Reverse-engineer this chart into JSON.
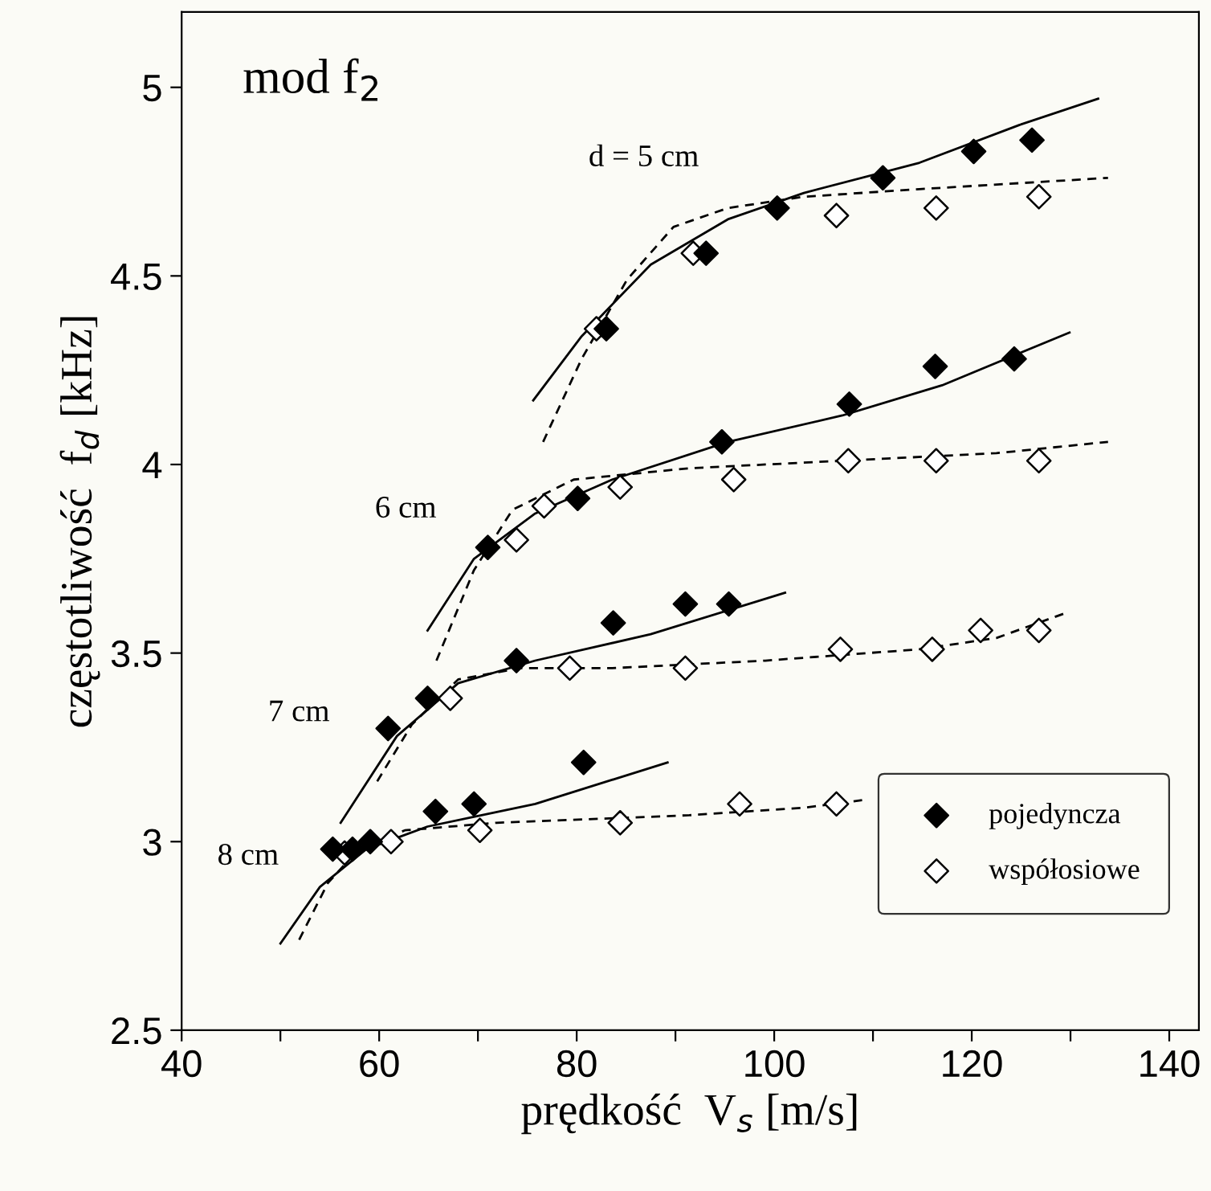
{
  "chart_data": {
    "type": "scatter",
    "xlabel": "prędkość  V$_{s}$ [m/s]",
    "ylabel": "częstotliwość  f$_{d}$ [kHz]",
    "xlim": [
      40,
      143
    ],
    "ylim": [
      2.5,
      5.2
    ],
    "xticks": [
      40,
      {
        "value": 50,
        "label": null
      },
      60,
      {
        "value": 70,
        "label": null
      },
      80,
      {
        "value": 90,
        "label": null
      },
      100,
      {
        "value": 110,
        "label": null
      },
      120,
      {
        "value": 130,
        "label": null
      },
      140
    ],
    "yticks": [
      2.5,
      3,
      3.5,
      4,
      4.5,
      5
    ],
    "grid": false,
    "legend": "bottom right",
    "annotations": [
      "mod f$_{2}$",
      "d = 5 cm",
      "6 cm",
      "7 cm",
      "8 cm"
    ],
    "series": [
      {
        "name": "pojedyncza",
        "marker": "diamond",
        "color": "#000000",
        "x": [
          83.0,
          93.1,
          100.3,
          111.0,
          120.2,
          126.1,
          71.0,
          80.1,
          94.7,
          107.6,
          116.3,
          124.3,
          60.9,
          64.9,
          73.9,
          83.7,
          91.0,
          95.4,
          55.3,
          57.3,
          59.1,
          65.7,
          69.6,
          80.7
        ],
        "values": [
          4.36,
          4.56,
          4.68,
          4.76,
          4.83,
          4.86,
          3.78,
          3.91,
          4.06,
          4.16,
          4.26,
          4.28,
          3.3,
          3.38,
          3.48,
          3.58,
          3.63,
          3.63,
          2.98,
          2.98,
          3.0,
          3.08,
          3.1,
          3.21
        ]
      },
      {
        "name": "współosiowe",
        "marker": "diamond",
        "color": "#ffffff",
        "x": [
          82.0,
          91.8,
          106.3,
          116.4,
          126.8,
          73.9,
          76.7,
          84.4,
          95.9,
          107.5,
          116.4,
          126.8,
          67.2,
          79.3,
          91.0,
          106.7,
          116.0,
          120.9,
          126.8,
          56.5,
          61.2,
          70.2,
          84.4,
          96.5,
          106.3
        ],
        "values": [
          4.36,
          4.56,
          4.66,
          4.68,
          4.71,
          3.8,
          3.89,
          3.94,
          3.96,
          4.01,
          4.01,
          4.01,
          3.38,
          3.46,
          3.46,
          3.51,
          3.51,
          3.56,
          3.56,
          2.97,
          3.0,
          3.03,
          3.05,
          3.1,
          3.1
        ]
      },
      {
        "type": "line",
        "line_style": "solid",
        "color": "#000000",
        "x": [
          75.6,
          80.5,
          87.5,
          95.3,
          103.0,
          114.7,
          124.8,
          132.8
        ],
        "values": [
          4.17,
          4.34,
          4.53,
          4.65,
          4.72,
          4.8,
          4.9,
          4.97
        ]
      },
      {
        "type": "line",
        "line_style": "dashed",
        "color": "#000000",
        "x": [
          76.6,
          80.5,
          85.1,
          89.8,
          95.3,
          103.0,
          114.7,
          133.8
        ],
        "values": [
          4.06,
          4.28,
          4.49,
          4.63,
          4.68,
          4.71,
          4.73,
          4.76
        ]
      },
      {
        "type": "line",
        "line_style": "solid",
        "color": "#000000",
        "x": [
          64.9,
          69.6,
          75.8,
          83.6,
          95.3,
          106.9,
          117.0,
          129.9
        ],
        "values": [
          3.56,
          3.75,
          3.87,
          3.96,
          4.06,
          4.13,
          4.21,
          4.35
        ]
      },
      {
        "type": "line",
        "line_style": "dashed",
        "color": "#000000",
        "x": [
          65.8,
          69.6,
          73.5,
          79.7,
          91.4,
          106.9,
          122.5,
          133.8
        ],
        "values": [
          3.48,
          3.72,
          3.88,
          3.96,
          3.99,
          4.01,
          4.03,
          4.06
        ]
      },
      {
        "type": "line",
        "line_style": "solid",
        "color": "#000000",
        "x": [
          56.1,
          61.8,
          68.0,
          75.8,
          87.5,
          101.1
        ],
        "values": [
          3.05,
          3.28,
          3.42,
          3.48,
          3.55,
          3.66
        ]
      },
      {
        "type": "line",
        "line_style": "dashed",
        "color": "#000000",
        "x": [
          59.8,
          63.3,
          68.0,
          74.2,
          83.6,
          99.1,
          114.7,
          122.5,
          129.9
        ],
        "values": [
          3.16,
          3.31,
          3.43,
          3.46,
          3.46,
          3.48,
          3.51,
          3.54,
          3.61
        ]
      },
      {
        "type": "line",
        "line_style": "solid",
        "color": "#000000",
        "x": [
          50.0,
          54.0,
          58.7,
          64.9,
          75.8,
          89.2
        ],
        "values": [
          2.73,
          2.88,
          2.98,
          3.04,
          3.1,
          3.21
        ]
      },
      {
        "type": "line",
        "line_style": "dashed",
        "color": "#000000",
        "x": [
          51.9,
          54.8,
          57.9,
          62.6,
          71.9,
          91.4,
          103.0,
          108.9
        ],
        "values": [
          2.74,
          2.89,
          2.98,
          3.03,
          3.05,
          3.07,
          3.09,
          3.11
        ]
      }
    ]
  }
}
